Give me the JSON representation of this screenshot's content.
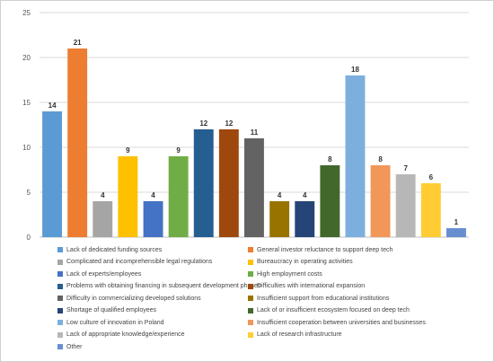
{
  "chart_data": {
    "type": "bar",
    "ylim": [
      0,
      25
    ],
    "yticks": [
      0,
      5,
      10,
      15,
      20,
      25
    ],
    "grid": true,
    "legend_position": "bottom",
    "title": "",
    "xlabel": "",
    "ylabel": "",
    "series": [
      {
        "name": "Lack of dedicated funding sources",
        "value": 14,
        "color": "#5b9bd5"
      },
      {
        "name": "General investor reluctance to support deep tech",
        "value": 21,
        "color": "#ed7d31"
      },
      {
        "name": "Complicated and incomprehensible legal regulations",
        "value": 4,
        "color": "#a5a5a5"
      },
      {
        "name": "Bureaucracy in operating activities",
        "value": 9,
        "color": "#ffc000"
      },
      {
        "name": "Lack of experts/employees",
        "value": 4,
        "color": "#4472c4"
      },
      {
        "name": "High employment costs",
        "value": 9,
        "color": "#70ad47"
      },
      {
        "name": "Problems with obtaining financing in subsequent development phases",
        "value": 12,
        "color": "#255e91"
      },
      {
        "name": "Difficulties with international expansion",
        "value": 12,
        "color": "#9e480e"
      },
      {
        "name": "Difficulty in commercializing developed solutions",
        "value": 11,
        "color": "#636363"
      },
      {
        "name": "Insufficient support from educational institutions",
        "value": 4,
        "color": "#997300"
      },
      {
        "name": "Shortage of qualified employees",
        "value": 4,
        "color": "#264478"
      },
      {
        "name": "Lack of or insufficient ecosystem focused on deep tech",
        "value": 8,
        "color": "#43682b"
      },
      {
        "name": "Low culture of innovation in Poland",
        "value": 18,
        "color": "#7cafdd"
      },
      {
        "name": "Insufficient cooperation between universities and businesses",
        "value": 8,
        "color": "#f1975a"
      },
      {
        "name": "Lack of appropriate knowledge/experience",
        "value": 7,
        "color": "#b7b7b7"
      },
      {
        "name": "Lack of research infrastructure",
        "value": 6,
        "color": "#ffcd33"
      },
      {
        "name": "Other",
        "value": 1,
        "color": "#698ed0"
      }
    ]
  }
}
